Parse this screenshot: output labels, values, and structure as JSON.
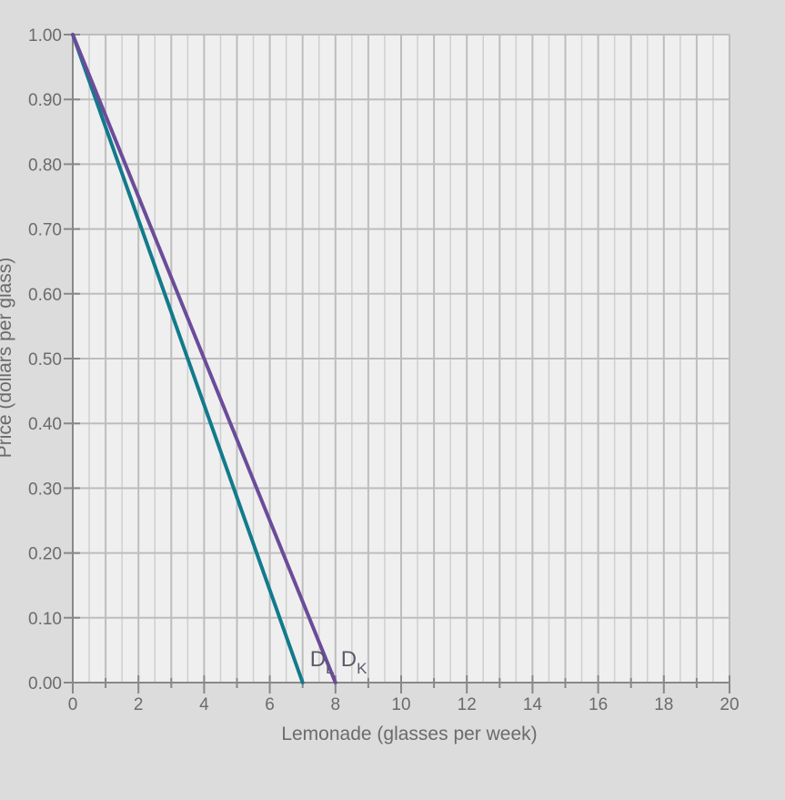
{
  "chart_data": {
    "type": "line",
    "title": "",
    "xlabel": "Lemonade (glasses per week)",
    "ylabel": "Price (dollars per glass)",
    "xlim": [
      0,
      20
    ],
    "ylim": [
      0,
      1.0
    ],
    "x_ticks": [
      0,
      2,
      4,
      6,
      8,
      10,
      12,
      14,
      16,
      18,
      20
    ],
    "x_tick_labels": [
      "0",
      "2",
      "4",
      "6",
      "8",
      "10",
      "12",
      "14",
      "16",
      "18",
      "20"
    ],
    "y_ticks": [
      0,
      0.1,
      0.2,
      0.3,
      0.4,
      0.5,
      0.6,
      0.7,
      0.8,
      0.9,
      1.0
    ],
    "y_tick_labels": [
      "0.00",
      "0.10",
      "0.20",
      "0.30",
      "0.40",
      "0.50",
      "0.60",
      "0.70",
      "0.80",
      "0.90",
      "1.00"
    ],
    "grid": true,
    "series": [
      {
        "name": "DL",
        "label_main": "D",
        "label_sub": "L",
        "color": "#127a8c",
        "x": [
          0,
          7
        ],
        "y": [
          1.0,
          0.0
        ]
      },
      {
        "name": "DK",
        "label_main": "D",
        "label_sub": "K",
        "color": "#6b4c99",
        "x": [
          0,
          8
        ],
        "y": [
          1.0,
          0.0
        ]
      }
    ]
  }
}
